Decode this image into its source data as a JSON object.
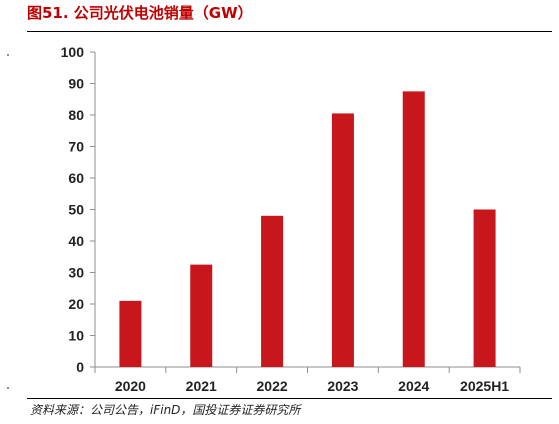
{
  "header": {
    "title": "图51. 公司光伏电池销量（GW）"
  },
  "footer": {
    "source": "资料来源：公司公告，iFinD，国投证券证券研究所"
  },
  "chart_data": {
    "type": "bar",
    "title": "图51. 公司光伏电池销量（GW）",
    "xlabel": "",
    "ylabel": "",
    "categories": [
      "2020",
      "2021",
      "2022",
      "2023",
      "2024",
      "2025H1"
    ],
    "series": [
      {
        "values": [
          21,
          32.5,
          48,
          80.5,
          87.5,
          50
        ]
      }
    ],
    "ylim": [
      0,
      100
    ],
    "yticks": [
      0,
      10,
      20,
      30,
      40,
      50,
      60,
      70,
      80,
      90,
      100
    ],
    "grid": false,
    "legend": "none",
    "bar_color": "#c8161d"
  }
}
